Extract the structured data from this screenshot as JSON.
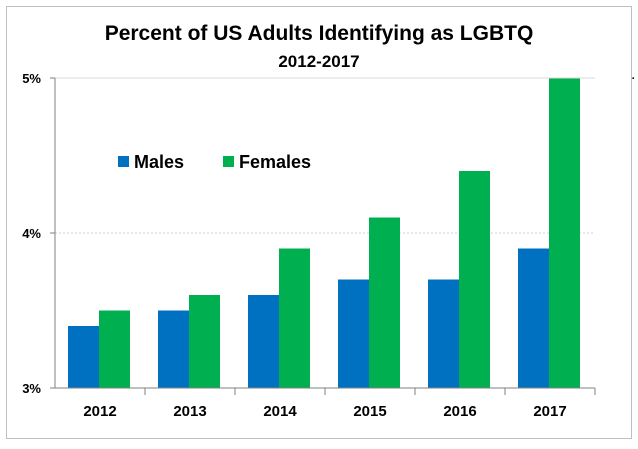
{
  "chart_data": {
    "type": "bar",
    "title": "Percent of US Adults Identifying as LGBTQ",
    "subtitle": "2012-2017",
    "categories": [
      "2012",
      "2013",
      "2014",
      "2015",
      "2016",
      "2017"
    ],
    "series": [
      {
        "name": "Males",
        "color": "#0070C0",
        "values": [
          3.4,
          3.5,
          3.6,
          3.7,
          3.7,
          3.9
        ]
      },
      {
        "name": "Females",
        "color": "#00B050",
        "values": [
          3.5,
          3.6,
          3.9,
          4.1,
          4.4,
          5.0
        ]
      }
    ],
    "ylim": [
      3,
      5
    ],
    "yticks": [
      {
        "value": 3,
        "label": "3%"
      },
      {
        "value": 4,
        "label": "4%"
      },
      {
        "value": 5,
        "label": "5%"
      }
    ],
    "xlabel": "",
    "ylabel": "",
    "grid": true,
    "legend_position": "upper-left inside plot"
  },
  "stray_mark": "."
}
